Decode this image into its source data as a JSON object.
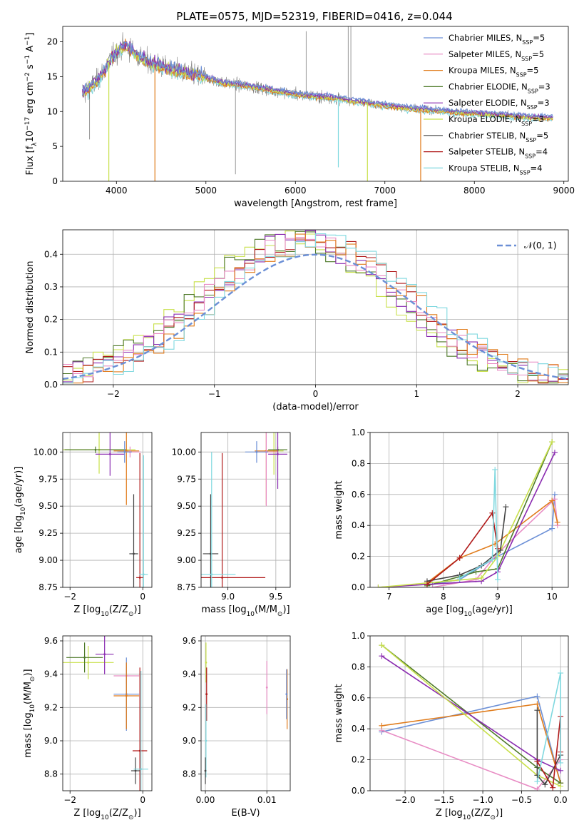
{
  "title": "PLATE=0575, MJD=52319, FIBERID=0416, z=0.044",
  "colors": {
    "Chabrier MILES": "#6b8fd6",
    "Salpeter MILES": "#e88cc4",
    "Kroupa MILES": "#e07b1a",
    "Chabrier ELODIE": "#4f7a2a",
    "Salpeter ELODIE": "#8a2bb0",
    "Kroupa ELODIE": "#c8e04a",
    "Chabrier STELIB": "#444444",
    "Salpeter STELIB": "#b01818",
    "Kroupa STELIB": "#7fd8df",
    "data": "#7f7f7f"
  },
  "chart_data": [
    {
      "id": "spectrum",
      "type": "line",
      "xlabel": "wavelength [Angstrom, rest frame]",
      "xlim": [
        3400,
        9050
      ],
      "ylim": [
        0,
        22.2
      ],
      "xticks": [
        4000,
        5000,
        6000,
        7000,
        8000,
        9000
      ],
      "yticks": [
        0,
        5,
        10,
        15,
        20
      ],
      "ylabel_parts": [
        "Flux [f",
        "λ",
        "10",
        "−17",
        " erg cm",
        "−2",
        " s",
        "−1",
        " A",
        "−1",
        "]"
      ],
      "legend": [
        {
          "name": "Chabrier MILES, N",
          "sub": "SSP",
          "tail": "=5",
          "series": "Chabrier MILES"
        },
        {
          "name": "Salpeter MILES, N",
          "sub": "SSP",
          "tail": "=5",
          "series": "Salpeter MILES"
        },
        {
          "name": "Kroupa MILES, N",
          "sub": "SSP",
          "tail": "=5",
          "series": "Kroupa MILES"
        },
        {
          "name": "Chabrier ELODIE, N",
          "sub": "SSP",
          "tail": "=3",
          "series": "Chabrier ELODIE"
        },
        {
          "name": "Salpeter ELODIE, N",
          "sub": "SSP",
          "tail": "=3",
          "series": "Salpeter ELODIE"
        },
        {
          "name": "Kroupa ELODIE, N",
          "sub": "SSP",
          "tail": "=3",
          "series": "Kroupa ELODIE"
        },
        {
          "name": "Chabrier STELIB, N",
          "sub": "SSP",
          "tail": "=5",
          "series": "Chabrier STELIB"
        },
        {
          "name": "Salpeter STELIB, N",
          "sub": "SSP",
          "tail": "=4",
          "series": "Salpeter STELIB"
        },
        {
          "name": "Kroupa STELIB, N",
          "sub": "SSP",
          "tail": "=4",
          "series": "Kroupa STELIB"
        }
      ],
      "continuum": [
        [
          3650,
          12.8
        ],
        [
          3800,
          14.6
        ],
        [
          3950,
          17.8
        ],
        [
          4100,
          19.5
        ],
        [
          4300,
          17.4
        ],
        [
          4600,
          16.0
        ],
        [
          4900,
          15.2
        ],
        [
          5200,
          14.1
        ],
        [
          5500,
          13.6
        ],
        [
          5800,
          12.9
        ],
        [
          6100,
          12.3
        ],
        [
          6400,
          12.0
        ],
        [
          6700,
          11.4
        ],
        [
          7000,
          10.9
        ],
        [
          7300,
          10.4
        ],
        [
          7600,
          10.1
        ],
        [
          7900,
          9.8
        ],
        [
          8200,
          9.6
        ],
        [
          8500,
          9.3
        ],
        [
          8800,
          9.1
        ]
      ],
      "model_dips": [
        {
          "series": "Kroupa ELODIE",
          "x": 3915,
          "y": 0
        },
        {
          "series": "Kroupa MILES",
          "x": 4430,
          "y": 0
        },
        {
          "series": "Kroupa STELIB",
          "x": 6480,
          "y": 2
        },
        {
          "series": "Kroupa ELODIE",
          "x": 6805,
          "y": 0
        },
        {
          "series": "Kroupa MILES",
          "x": 7400,
          "y": 0
        }
      ],
      "data_spikes": [
        {
          "x": 3700,
          "y": 6
        },
        {
          "x": 5330,
          "y": 1
        },
        {
          "x": 6120,
          "y": 21.5
        },
        {
          "x": 6590,
          "y": 22.2
        },
        {
          "x": 6620,
          "y": 22.2
        }
      ]
    },
    {
      "id": "residuals",
      "type": "line",
      "xlabel": "(data-model)/error",
      "ylabel": "Normed distribution",
      "xlim": [
        -2.5,
        2.5
      ],
      "ylim": [
        0,
        0.475
      ],
      "xticks": [
        -2,
        -1,
        0,
        1,
        2
      ],
      "ytick_labels": [
        "0.0",
        "0.1",
        "0.2",
        "0.3",
        "0.4"
      ],
      "yticks": [
        0,
        0.1,
        0.2,
        0.3,
        0.4
      ],
      "reference": {
        "label": "𝒩(0, 1)",
        "mean": 0,
        "std": 1,
        "color": "#6b8fd6"
      },
      "histograms": {
        "bin_edges_start": -2.5,
        "bin_width": 0.1,
        "series": [
          {
            "series": "Kroupa ELODIE",
            "shift": -0.25
          },
          {
            "series": "Chabrier ELODIE",
            "shift": -0.22
          },
          {
            "series": "Salpeter ELODIE",
            "shift": -0.15
          },
          {
            "series": "Salpeter STELIB",
            "shift": -0.05
          },
          {
            "series": "Salpeter MILES",
            "shift": -0.1
          },
          {
            "series": "Kroupa MILES",
            "shift": 0.0
          },
          {
            "series": "Kroupa STELIB",
            "shift": 0.05
          }
        ]
      }
    },
    {
      "id": "age-vs-Z",
      "type": "scatter",
      "xlabel_parts": [
        "Z [log",
        "10",
        "(Z/Z",
        "⊙",
        ")]"
      ],
      "ylabel_parts": [
        "age  [log",
        "10",
        "(age/yr)]"
      ],
      "xlim": [
        -2.2,
        0.25
      ],
      "ylim": [
        8.75,
        10.18
      ],
      "xticks": [
        -2,
        0
      ],
      "xtick_labels": [
        "−2",
        "0"
      ],
      "yticks": [
        8.75,
        9.0,
        9.25,
        9.5,
        9.75,
        10.0
      ],
      "ytick_labels": [
        "8.75",
        "9.00",
        "9.25",
        "9.50",
        "9.75",
        "10.00"
      ],
      "points": [
        {
          "series": "Kroupa ELODIE",
          "x": -1.2,
          "y": 10.02,
          "xerr": 1.0,
          "yerr": 0.22
        },
        {
          "series": "Chabrier ELODIE",
          "x": -1.3,
          "y": 10.02,
          "xerr": 0.85,
          "yerr": 0.03
        },
        {
          "series": "Salpeter ELODIE",
          "x": -0.9,
          "y": 9.98,
          "xerr": 0.4,
          "yerr": 0.2
        },
        {
          "series": "Kroupa MILES",
          "x": -0.45,
          "y": 10.01,
          "xerr": 0.35,
          "yerr": 0.5
        },
        {
          "series": "Salpeter MILES",
          "x": -0.35,
          "y": 10.0,
          "xerr": 0.3,
          "yerr": 0.05
        },
        {
          "series": "Chabrier MILES",
          "x": -0.5,
          "y": 10.0,
          "xerr": 0.2,
          "yerr": 0.1
        },
        {
          "series": "Chabrier STELIB",
          "x": -0.25,
          "y": 9.06,
          "xerr": 0.12,
          "yerr": 0.55
        },
        {
          "series": "Salpeter STELIB",
          "x": -0.08,
          "y": 8.84,
          "xerr": 0.1,
          "yerr": 1.15
        },
        {
          "series": "Kroupa STELIB",
          "x": 0.02,
          "y": 8.87,
          "xerr": 0.12,
          "yerr": 1.1
        }
      ]
    },
    {
      "id": "age-vs-mass",
      "type": "scatter",
      "xlabel_parts": [
        "mass [log",
        "10",
        "(M/M",
        "⊙",
        ")]"
      ],
      "xlim": [
        8.72,
        9.65
      ],
      "ylim": [
        8.75,
        10.18
      ],
      "xticks": [
        9.0,
        9.5
      ],
      "xtick_labels": [
        "9.0",
        "9.5"
      ],
      "yticks": [
        8.75,
        9.0,
        9.25,
        9.5,
        9.75,
        10.0
      ],
      "ytick_labels": [
        "8.75",
        "9.00",
        "9.25",
        "9.50",
        "9.75",
        "10.00"
      ],
      "points": [
        {
          "series": "Kroupa ELODIE",
          "x": 9.48,
          "y": 10.01,
          "xerr": 0.1,
          "yerr": 0.22
        },
        {
          "series": "Chabrier ELODIE",
          "x": 9.52,
          "y": 10.02,
          "xerr": 0.1,
          "yerr": 0.03
        },
        {
          "series": "Salpeter ELODIE",
          "x": 9.52,
          "y": 9.98,
          "xerr": 0.1,
          "yerr": 0.32
        },
        {
          "series": "Kroupa MILES",
          "x": 9.4,
          "y": 10.01,
          "xerr": 0.12,
          "yerr": 0.5
        },
        {
          "series": "Salpeter MILES",
          "x": 9.4,
          "y": 10.0,
          "xerr": 0.12,
          "yerr": 0.5
        },
        {
          "series": "Chabrier MILES",
          "x": 9.3,
          "y": 10.0,
          "xerr": 0.12,
          "yerr": 0.1
        },
        {
          "series": "Chabrier STELIB",
          "x": 8.82,
          "y": 9.06,
          "xerr": 0.08,
          "yerr": 0.55
        },
        {
          "series": "Salpeter STELIB",
          "x": 8.94,
          "y": 8.84,
          "xerr": 0.45,
          "yerr": 1.15
        },
        {
          "series": "Kroupa STELIB",
          "x": 8.83,
          "y": 8.87,
          "xerr": 0.25,
          "yerr": 1.13
        }
      ]
    },
    {
      "id": "weight-vs-age",
      "type": "line",
      "xlabel_parts": [
        "age  [log",
        "10",
        "(age/yr)]"
      ],
      "ylabel": "mass weight",
      "xlim": [
        6.65,
        10.3
      ],
      "ylim": [
        0,
        1.0
      ],
      "xticks": [
        7,
        8,
        9,
        10
      ],
      "yticks": [
        0.0,
        0.2,
        0.4,
        0.6,
        0.8,
        1.0
      ],
      "ytick_labels": [
        "0.0",
        "0.2",
        "0.4",
        "0.6",
        "0.8",
        "1.0"
      ],
      "series": [
        {
          "series": "Chabrier MILES",
          "x": [
            7.8,
            8.3,
            9.0,
            10.0,
            10.05
          ],
          "y": [
            0.02,
            0.05,
            0.2,
            0.38,
            0.6
          ]
        },
        {
          "series": "Salpeter MILES",
          "x": [
            7.8,
            8.6,
            9.0,
            10.05,
            10.1
          ],
          "y": [
            0.0,
            0.05,
            0.22,
            0.57,
            0.4
          ]
        },
        {
          "series": "Kroupa MILES",
          "x": [
            7.7,
            8.3,
            8.95,
            10.0,
            10.1
          ],
          "y": [
            0.03,
            0.19,
            0.28,
            0.56,
            0.42
          ]
        },
        {
          "series": "Chabrier ELODIE",
          "x": [
            7.7,
            8.6,
            9.0,
            10.0
          ],
          "y": [
            0.01,
            0.1,
            0.12,
            0.94
          ]
        },
        {
          "series": "Salpeter ELODIE",
          "x": [
            6.8,
            8.7,
            9.0,
            10.05
          ],
          "y": [
            0.0,
            0.04,
            0.1,
            0.87
          ]
        },
        {
          "series": "Kroupa ELODIE",
          "x": [
            6.8,
            8.7,
            9.0,
            10.0
          ],
          "y": [
            0.0,
            0.06,
            0.2,
            0.94
          ]
        },
        {
          "series": "Chabrier STELIB",
          "x": [
            7.7,
            8.3,
            8.7,
            9.05,
            9.15
          ],
          "y": [
            0.04,
            0.08,
            0.14,
            0.24,
            0.52
          ]
        },
        {
          "series": "Salpeter STELIB",
          "x": [
            7.7,
            8.3,
            8.9,
            9.0
          ],
          "y": [
            0.02,
            0.19,
            0.48,
            0.25
          ]
        },
        {
          "series": "Kroupa STELIB",
          "x": [
            8.3,
            8.9,
            8.95,
            9.0
          ],
          "y": [
            0.06,
            0.18,
            0.76,
            0.05
          ]
        }
      ]
    },
    {
      "id": "mass-vs-Z",
      "type": "scatter",
      "xlabel_parts": [
        "Z [log",
        "10",
        "(Z/Z",
        "⊙",
        ")]"
      ],
      "ylabel_parts": [
        "mass [log",
        "10",
        "(M/M",
        "⊙",
        ")]"
      ],
      "xlim": [
        -2.2,
        0.25
      ],
      "ylim": [
        8.7,
        9.63
      ],
      "xticks": [
        -2,
        0
      ],
      "xtick_labels": [
        "−2",
        "0"
      ],
      "yticks": [
        8.8,
        9.0,
        9.2,
        9.4,
        9.6
      ],
      "ytick_labels": [
        "8.8",
        "9.0",
        "9.2",
        "9.4",
        "9.6"
      ],
      "points": [
        {
          "series": "Kroupa ELODIE",
          "x": -1.5,
          "y": 9.47,
          "xerr": 0.7,
          "yerr": 0.1
        },
        {
          "series": "Chabrier ELODIE",
          "x": -1.6,
          "y": 9.5,
          "xerr": 0.5,
          "yerr": 0.09
        },
        {
          "series": "Salpeter ELODIE",
          "x": -1.05,
          "y": 9.52,
          "xerr": 0.25,
          "yerr": 0.12
        },
        {
          "series": "Salpeter MILES",
          "x": -0.45,
          "y": 9.39,
          "xerr": 0.35,
          "yerr": 0.05
        },
        {
          "series": "Chabrier MILES",
          "x": -0.45,
          "y": 9.28,
          "xerr": 0.35,
          "yerr": 0.22
        },
        {
          "series": "Kroupa MILES",
          "x": -0.45,
          "y": 9.27,
          "xerr": 0.35,
          "yerr": 0.2
        },
        {
          "series": "Salpeter STELIB",
          "x": -0.08,
          "y": 8.94,
          "xerr": 0.2,
          "yerr": 0.5
        },
        {
          "series": "Chabrier STELIB",
          "x": -0.2,
          "y": 8.82,
          "xerr": 0.12,
          "yerr": 0.08
        },
        {
          "series": "Kroupa STELIB",
          "x": -0.05,
          "y": 8.83,
          "xerr": 0.2,
          "yerr": 0.59
        }
      ]
    },
    {
      "id": "mass-vs-EBV",
      "type": "scatter",
      "xlabel": "E(B-V)",
      "xlim": [
        -0.0007,
        0.0138
      ],
      "ylim": [
        8.7,
        9.63
      ],
      "xticks": [
        0.0,
        0.01
      ],
      "xtick_labels": [
        "0.00",
        "0.01"
      ],
      "yticks": [
        8.8,
        9.0,
        9.2,
        9.4,
        9.6
      ],
      "ytick_labels": [
        "8.8",
        "9.0",
        "9.2",
        "9.4",
        "9.6"
      ],
      "points": [
        {
          "series": "Kroupa ELODIE",
          "x": 0.0001,
          "y": 9.47,
          "yerr": 0.12
        },
        {
          "series": "Salpeter STELIB",
          "x": 0.0002,
          "y": 9.28,
          "yerr": 0.16
        },
        {
          "series": "Kroupa STELIB",
          "x": 0.0001,
          "y": 9.0,
          "yerr": 0.22
        },
        {
          "series": "Chabrier STELIB",
          "x": 0.0,
          "y": 8.82,
          "yerr": 0.08
        },
        {
          "series": "Salpeter MILES",
          "x": 0.01,
          "y": 9.32,
          "yerr": 0.16
        },
        {
          "series": "Kroupa MILES",
          "x": 0.0133,
          "y": 9.25,
          "yerr": 0.18
        },
        {
          "series": "Chabrier MILES",
          "x": 0.0132,
          "y": 9.28,
          "yerr": 0.15
        }
      ]
    },
    {
      "id": "weight-vs-Z",
      "type": "line",
      "xlabel_parts": [
        "Z [log",
        "10",
        "(Z/Z",
        "⊙",
        ")]"
      ],
      "ylabel": "mass weight",
      "xlim": [
        -2.45,
        0.1
      ],
      "ylim": [
        0,
        1.0
      ],
      "xticks": [
        -2.0,
        -1.5,
        -1.0,
        -0.5,
        0.0
      ],
      "xtick_labels": [
        "−2.0",
        "−1.5",
        "−1.0",
        "−0.5",
        "0.0"
      ],
      "yticks": [
        0.0,
        0.2,
        0.4,
        0.6,
        0.8,
        1.0
      ],
      "ytick_labels": [
        "0.0",
        "0.2",
        "0.4",
        "0.6",
        "0.8",
        "1.0"
      ],
      "series": [
        {
          "series": "Chabrier MILES",
          "x": [
            -2.3,
            -0.3,
            0.0
          ],
          "y": [
            0.38,
            0.61,
            0.05
          ]
        },
        {
          "series": "Salpeter MILES",
          "x": [
            -2.3,
            -0.3,
            0.0
          ],
          "y": [
            0.39,
            0.01,
            0.2
          ]
        },
        {
          "series": "Kroupa MILES",
          "x": [
            -2.3,
            -0.3,
            0.0
          ],
          "y": [
            0.42,
            0.56,
            0.05
          ]
        },
        {
          "series": "Chabrier ELODIE",
          "x": [
            -2.3,
            -0.3,
            0.0
          ],
          "y": [
            0.94,
            0.15,
            0.05
          ]
        },
        {
          "series": "Salpeter ELODIE",
          "x": [
            -2.3,
            -0.3,
            0.0
          ],
          "y": [
            0.87,
            0.2,
            0.13
          ]
        },
        {
          "series": "Kroupa ELODIE",
          "x": [
            -2.3,
            -0.3,
            0.0
          ],
          "y": [
            0.94,
            0.1,
            0.03
          ]
        },
        {
          "series": "Chabrier STELIB",
          "x": [
            -0.3,
            -0.3,
            -0.2,
            0.0
          ],
          "y": [
            0.52,
            0.1,
            0.04,
            0.23
          ]
        },
        {
          "series": "Salpeter STELIB",
          "x": [
            -0.3,
            -0.1,
            0.0,
            0.0
          ],
          "y": [
            0.19,
            0.02,
            0.48,
            0.25
          ]
        },
        {
          "series": "Kroupa STELIB",
          "x": [
            -0.3,
            0.0,
            0.0
          ],
          "y": [
            0.06,
            0.76,
            0.18
          ]
        }
      ]
    }
  ]
}
